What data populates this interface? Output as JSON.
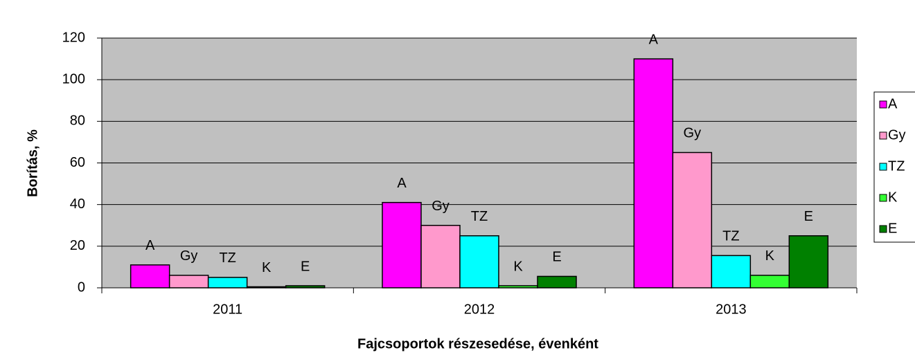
{
  "chart_data": {
    "type": "bar",
    "x_label": "Fajcsoportok részesedése, évenként",
    "y_label": "Borítás, %",
    "categories": [
      "2011",
      "2012",
      "2013"
    ],
    "series": [
      {
        "name": "A",
        "color": "#ff00ff",
        "values": [
          11,
          41,
          110
        ]
      },
      {
        "name": "Gy",
        "color": "#ff99cc",
        "values": [
          6,
          30,
          65
        ]
      },
      {
        "name": "TZ",
        "color": "#00ffff",
        "values": [
          5,
          25,
          15.5
        ]
      },
      {
        "name": "K",
        "color": "#33ff33",
        "values": [
          0.5,
          1,
          6
        ]
      },
      {
        "name": "E",
        "color": "#008000",
        "values": [
          1,
          5.5,
          25
        ]
      }
    ],
    "ylim": [
      0,
      120
    ],
    "yticks": [
      0,
      20,
      40,
      60,
      80,
      100,
      120
    ],
    "grid": true,
    "legend": "right"
  }
}
